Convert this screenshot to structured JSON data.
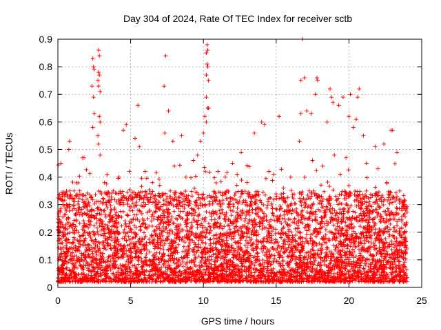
{
  "chart_data": {
    "type": "scatter",
    "title": "Day 304 of 2024, Rate Of TEC Index for receiver sctb",
    "xlabel": "GPS time / hours",
    "ylabel": "ROTI / TECUs",
    "xlim": [
      0,
      25
    ],
    "ylim": [
      0,
      0.9
    ],
    "xticks": [
      0,
      5,
      10,
      15,
      20,
      25
    ],
    "yticks": [
      0,
      0.1,
      0.2,
      0.3,
      0.4,
      0.5,
      0.6,
      0.7,
      0.8,
      0.9
    ],
    "grid": true,
    "marker": "+",
    "color": "#ff0000",
    "series": [
      {
        "name": "ROTI",
        "points": [
          [
            2.4,
            0.83
          ],
          [
            2.45,
            0.8
          ],
          [
            2.5,
            0.79
          ],
          [
            2.35,
            0.73
          ],
          [
            2.45,
            0.69
          ],
          [
            2.5,
            0.63
          ],
          [
            2.4,
            0.58
          ],
          [
            2.8,
            0.86
          ],
          [
            2.85,
            0.84
          ],
          [
            2.8,
            0.78
          ],
          [
            2.85,
            0.77
          ],
          [
            2.75,
            0.75
          ],
          [
            2.8,
            0.73
          ],
          [
            2.9,
            0.71
          ],
          [
            2.85,
            0.62
          ],
          [
            2.9,
            0.6
          ],
          [
            2.75,
            0.55
          ],
          [
            2.8,
            0.52
          ],
          [
            2.9,
            0.48
          ],
          [
            1.8,
            0.47
          ],
          [
            1.7,
            0.47
          ],
          [
            0.8,
            0.53
          ],
          [
            0.75,
            0.5
          ],
          [
            0.2,
            0.45
          ],
          [
            4.7,
            0.59
          ],
          [
            4.5,
            0.57
          ],
          [
            5.5,
            0.66
          ],
          [
            5.3,
            0.54
          ],
          [
            5.6,
            0.51
          ],
          [
            7.4,
            0.84
          ],
          [
            7.3,
            0.73
          ],
          [
            7.6,
            0.64
          ],
          [
            7.35,
            0.56
          ],
          [
            7.9,
            0.53
          ],
          [
            8.5,
            0.55
          ],
          [
            10.25,
            0.88
          ],
          [
            10.3,
            0.86
          ],
          [
            10.2,
            0.85
          ],
          [
            10.25,
            0.81
          ],
          [
            10.3,
            0.8
          ],
          [
            10.2,
            0.77
          ],
          [
            10.35,
            0.75
          ],
          [
            10.2,
            0.69
          ],
          [
            10.3,
            0.65
          ],
          [
            10.35,
            0.65
          ],
          [
            10.1,
            0.62
          ],
          [
            10.2,
            0.6
          ],
          [
            10.0,
            0.56
          ],
          [
            9.8,
            0.53
          ],
          [
            12.6,
            0.49
          ],
          [
            13.5,
            0.56
          ],
          [
            14.0,
            0.6
          ],
          [
            14.2,
            0.59
          ],
          [
            15.2,
            0.62
          ],
          [
            16.8,
            0.9
          ],
          [
            16.7,
            0.75
          ],
          [
            16.95,
            0.76
          ],
          [
            17.1,
            0.64
          ],
          [
            17.4,
            0.63
          ],
          [
            16.7,
            0.63
          ],
          [
            16.6,
            0.53
          ],
          [
            17.8,
            0.76
          ],
          [
            17.85,
            0.75
          ],
          [
            17.7,
            0.7
          ],
          [
            18.7,
            0.72
          ],
          [
            18.8,
            0.69
          ],
          [
            18.9,
            0.67
          ],
          [
            18.5,
            0.6
          ],
          [
            19.3,
            0.66
          ],
          [
            19.6,
            0.69
          ],
          [
            20.1,
            0.7
          ],
          [
            20.7,
            0.72
          ],
          [
            20.6,
            0.69
          ],
          [
            20.5,
            0.61
          ],
          [
            20.3,
            0.58
          ],
          [
            20.0,
            0.62
          ],
          [
            21.0,
            0.55
          ],
          [
            21.8,
            0.51
          ],
          [
            22.4,
            0.52
          ],
          [
            22.9,
            0.57
          ],
          [
            23.0,
            0.57
          ],
          [
            23.3,
            0.49
          ],
          [
            0.3,
            0.33
          ],
          [
            0.6,
            0.3
          ],
          [
            1.0,
            0.28
          ],
          [
            1.5,
            0.35
          ],
          [
            2.0,
            0.32
          ],
          [
            3.2,
            0.38
          ],
          [
            3.8,
            0.35
          ],
          [
            4.2,
            0.4
          ],
          [
            6.0,
            0.42
          ],
          [
            6.5,
            0.38
          ],
          [
            7.0,
            0.37
          ],
          [
            8.0,
            0.44
          ],
          [
            8.8,
            0.4
          ],
          [
            9.3,
            0.46
          ],
          [
            9.6,
            0.48
          ],
          [
            11.0,
            0.42
          ],
          [
            11.5,
            0.4
          ],
          [
            12.0,
            0.45
          ],
          [
            13.0,
            0.38
          ],
          [
            14.5,
            0.42
          ],
          [
            15.5,
            0.36
          ],
          [
            16.0,
            0.4
          ],
          [
            17.5,
            0.46
          ],
          [
            18.2,
            0.44
          ],
          [
            19.0,
            0.48
          ],
          [
            19.8,
            0.47
          ],
          [
            21.2,
            0.45
          ],
          [
            22.0,
            0.43
          ],
          [
            22.6,
            0.38
          ],
          [
            23.5,
            0.32
          ],
          [
            23.8,
            0.3
          ],
          [
            23.9,
            0.28
          ]
        ]
      }
    ],
    "noise_cloud": {
      "x_range": [
        0,
        24
      ],
      "y_baseline": [
        0.02,
        0.35
      ],
      "note": "dense cloud of ROTI values across the day, mostly 0.02 to 0.35 TECUs"
    }
  }
}
